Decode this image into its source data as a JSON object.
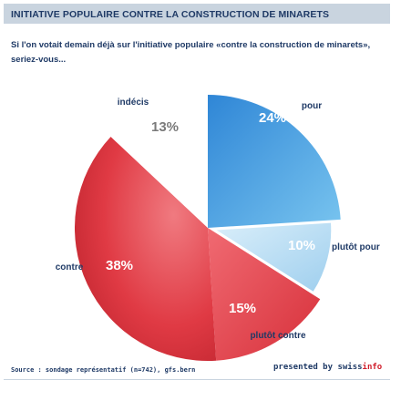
{
  "header": {
    "title": "INITIATIVE POPULAIRE CONTRE LA CONSTRUCTION DE MINARETS"
  },
  "question": "Si l'on votait demain déjà sur l'initiative populaire «contre la construction de minarets», seriez-vous...",
  "chart_data": {
    "type": "pie",
    "title": "",
    "slices": [
      {
        "label": "pour",
        "value": 24,
        "value_label": "24%",
        "color": "#4a9fe0"
      },
      {
        "label": "plutôt pour",
        "value": 10,
        "value_label": "10%",
        "color": "#b9dcf3"
      },
      {
        "label": "plutôt contre",
        "value": 15,
        "value_label": "15%",
        "color": "#e84e59"
      },
      {
        "label": "contre",
        "value": 38,
        "value_label": "38%",
        "color": "#d8323c"
      },
      {
        "label": "indécis",
        "value": 13,
        "value_label": "13%",
        "color": "#ffffff"
      }
    ],
    "start": "12 o'clock",
    "direction": "clockwise",
    "legend": "none"
  },
  "footer": {
    "source": "Source : sondage représentatif (n=742), gfs.bern",
    "credit_prefix": "presented by swiss",
    "credit_brand": "info"
  }
}
